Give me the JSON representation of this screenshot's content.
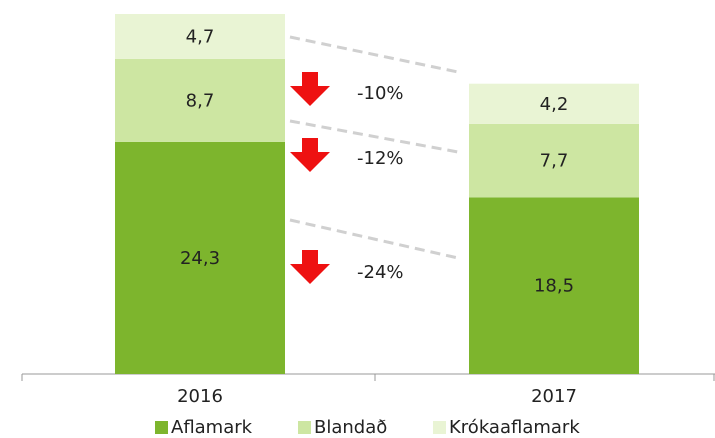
{
  "chart_data": {
    "type": "stacked_bar",
    "categories": [
      "2016",
      "2017"
    ],
    "series": [
      {
        "name": "Aflamark",
        "color": "#7db52d",
        "values": [
          24.3,
          18.5
        ],
        "value_labels": [
          "24,3",
          "18,5"
        ]
      },
      {
        "name": "Blandað",
        "color": "#cde6a2",
        "values": [
          8.7,
          7.7
        ],
        "value_labels": [
          "8,7",
          "7,7"
        ]
      },
      {
        "name": "Krókaaflamark",
        "color": "#e9f4d4",
        "values": [
          4.7,
          4.2
        ],
        "value_labels": [
          "4,7",
          "4,2"
        ]
      }
    ],
    "annotations": [
      "-24%",
      "-12%",
      "-10%"
    ]
  }
}
